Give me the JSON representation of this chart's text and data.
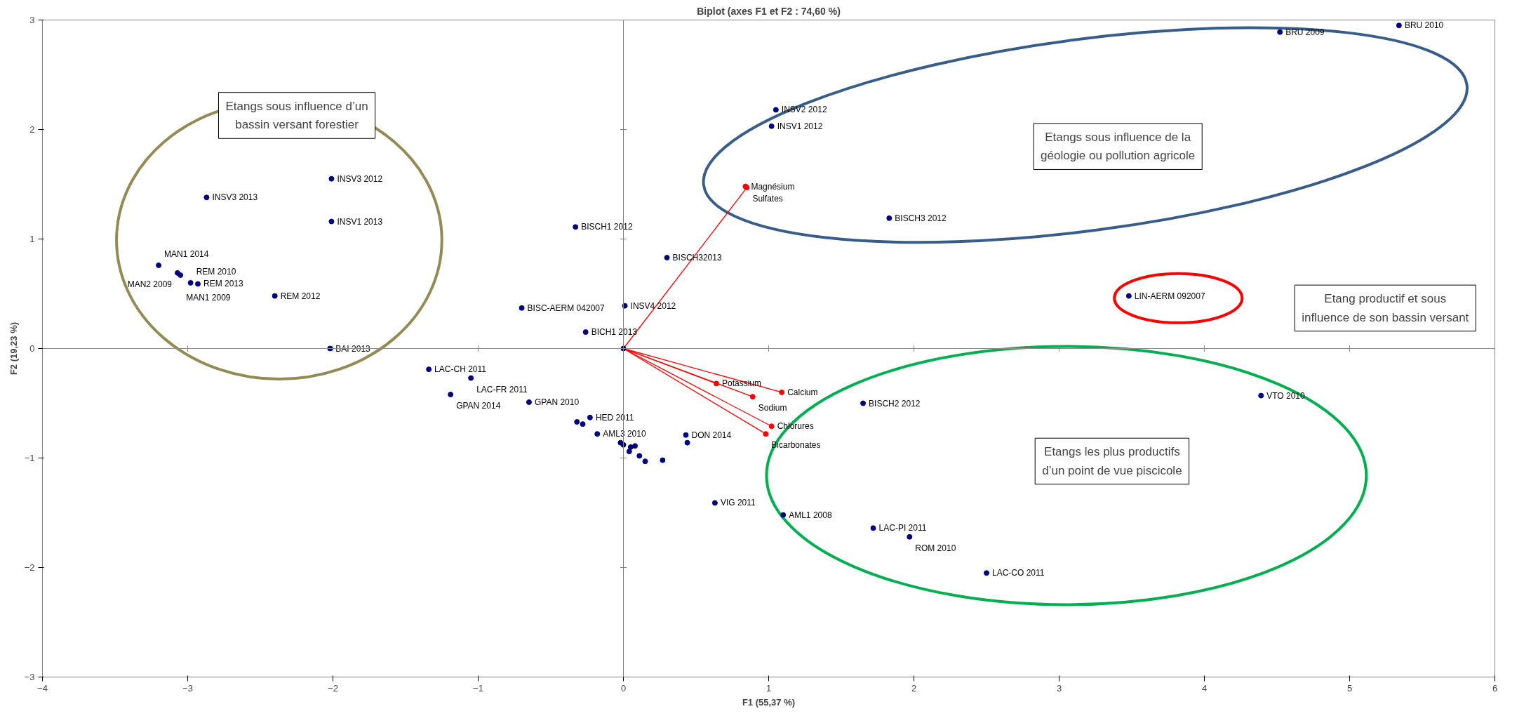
{
  "chart_data": {
    "type": "scatter",
    "title": "Biplot (axes F1 et F2 : 74,60 %)",
    "xlabel": "F1 (55,37 %)",
    "ylabel": "F2 (19,23 %)",
    "xlim": [
      -4,
      6
    ],
    "xticks": [
      -4,
      -3,
      -2,
      -1,
      0,
      1,
      2,
      3,
      4,
      5,
      6
    ],
    "ylim": [
      -3,
      3
    ],
    "yticks": [
      -3,
      -2,
      -1,
      0,
      1,
      2,
      3
    ],
    "grid": false,
    "marker": "circle",
    "ref_lines": [
      {
        "axis": "x",
        "value": 0,
        "color": "#808080"
      },
      {
        "axis": "y",
        "value": 0,
        "color": "#8c8c8c"
      }
    ],
    "annotations": [
      "Etangs sous influence d’un\nbassin versant forestier",
      "Etangs sous influence de la\ngéologie ou pollution agricole",
      "Etang productif et sous\ninfluence de son bassin versant",
      "Etangs les plus productifs\nd’un point de vue piscicole"
    ],
    "series": [
      {
        "type": "line",
        "color": "#ff0000",
        "marker": "none",
        "x": [
          0,
          0.85
        ],
        "values": [
          0,
          1.47
        ]
      },
      {
        "type": "line",
        "color": "#ff0000",
        "marker": "none",
        "x": [
          0,
          0.64
        ],
        "values": [
          0,
          -0.32
        ]
      },
      {
        "type": "line",
        "color": "#ff0000",
        "marker": "none",
        "x": [
          0,
          0.89
        ],
        "values": [
          0,
          -0.44
        ]
      },
      {
        "type": "line",
        "color": "#ff0000",
        "marker": "none",
        "x": [
          0,
          1.09
        ],
        "values": [
          0,
          -0.4
        ]
      },
      {
        "type": "line",
        "color": "#ff0000",
        "marker": "none",
        "x": [
          0,
          1.02
        ],
        "values": [
          0,
          -0.71
        ]
      },
      {
        "type": "line",
        "color": "#ff0000",
        "marker": "none",
        "x": [
          0,
          0.98
        ],
        "values": [
          0,
          -0.78
        ]
      },
      {
        "color": "#ff0000",
        "x": [
          0.84,
          0.85,
          0.64,
          0.89,
          1.09,
          1.02,
          0.98
        ],
        "values": [
          1.48,
          1.47,
          -0.32,
          -0.44,
          -0.4,
          -0.71,
          -0.78
        ],
        "value_labels": [
          "Magnésium",
          "Sulfates",
          "Potassium",
          "Sodium",
          "Calcium",
          "Chlorures",
          "Bicarbonates"
        ]
      },
      {
        "color": "#000080",
        "x": [
          4.52,
          5.34,
          1.05,
          1.02,
          1.83,
          3.48,
          4.39,
          1.65,
          0.63,
          1.1,
          1.72,
          1.97,
          2.5,
          -2.01,
          -2.87,
          -2.01,
          -3.2,
          -3.07,
          -3.05,
          -2.93,
          -2.98,
          -2.4,
          -2.02,
          -1.34,
          -1.05,
          -1.19,
          -0.65,
          -0.23,
          -0.32,
          -0.28,
          -0.18,
          -0.02,
          0.0,
          0.05,
          0.08,
          0.04,
          0.43,
          0.44,
          0.11,
          0.15,
          0.27,
          0.0,
          -0.33,
          0.3,
          -0.7,
          0.01,
          -0.26
        ],
        "values": [
          2.89,
          2.95,
          2.18,
          2.03,
          1.19,
          0.48,
          -0.43,
          -0.5,
          -1.41,
          -1.52,
          -1.64,
          -1.72,
          -2.05,
          1.55,
          1.38,
          1.16,
          0.76,
          0.69,
          0.67,
          0.59,
          0.6,
          0.48,
          0.0,
          -0.19,
          -0.27,
          -0.42,
          -0.49,
          -0.63,
          -0.67,
          -0.69,
          -0.78,
          -0.86,
          -0.88,
          -0.9,
          -0.89,
          -0.94,
          -0.79,
          -0.86,
          -0.98,
          -1.03,
          -1.02,
          0.0,
          1.11,
          0.83,
          0.37,
          0.39,
          0.15
        ],
        "value_labels": [
          "BRU 2009",
          "BRU 2010",
          "INSV2 2012",
          "INSV1 2012",
          "BISCH3 2012",
          "LIN-AERM 092007",
          "VTO 2010",
          "BISCH2 2012",
          "VIG 2011",
          "AML1 2008",
          "LAC-PI 2011",
          "ROM 2010",
          "LAC-CO 2011",
          "INSV3 2012",
          "INSV3 2013",
          "INSV1 2013",
          "MAN1 2014",
          "MAN2 2009",
          "MAN1 2009",
          "REM 2013",
          "REM 2010",
          "REM 2012",
          "BAI 2013",
          "LAC-CH 2011",
          "LAC-FR 2011",
          "GPAN 2014",
          "GPAN 2010",
          "HED 2011",
          null,
          null,
          "AML3 2010",
          null,
          null,
          null,
          null,
          null,
          "DON 2014",
          null,
          null,
          null,
          null,
          null,
          "BISCH1 2012",
          "BISCH32013",
          "BISC-AERM 042007",
          "INSV4 2012",
          "BICH1 2013"
        ]
      }
    ]
  }
}
